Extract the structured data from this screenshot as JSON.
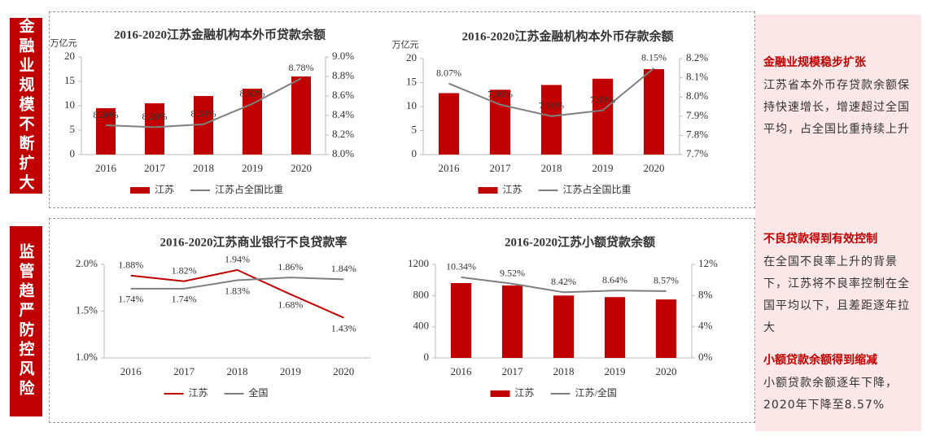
{
  "sidebar": [
    "金融业规模不断扩大",
    "监管趋严防控风险"
  ],
  "notes": [
    {
      "heading": "金融业规模稳步扩张",
      "text": "江苏省本外币存贷款余额保持快速增长，增速超过全国平均，占全国比重持续上升"
    },
    {
      "heading": "不良贷款得到有效控制",
      "text": "在全国不良率上升的背景下，江苏将不良率控制在全国平均以下，且差距逐年拉大"
    },
    {
      "heading": "小额贷款余额得到缩减",
      "text": "小额贷款余额逐年下降，2020年下降至8.57%"
    }
  ],
  "chart_data": [
    {
      "type": "bar",
      "title": "2016-2020江苏金融机构本外币贷款余额",
      "ylabel": "万亿元",
      "categories": [
        "2016",
        "2017",
        "2018",
        "2019",
        "2020"
      ],
      "ylim": [
        0,
        20
      ],
      "yticks": [
        0,
        5,
        10,
        15,
        20
      ],
      "y2lim": [
        8.0,
        9.0
      ],
      "y2ticks": [
        {
          "value": 8.0,
          "label": "8.0%"
        },
        {
          "value": 8.2,
          "label": "8.2%"
        },
        {
          "value": 8.4,
          "label": "8.4%"
        },
        {
          "value": 8.6,
          "label": "8.6%"
        },
        {
          "value": 8.8,
          "label": "8.8%"
        },
        {
          "value": 9.0,
          "label": "9.0%"
        }
      ],
      "series": [
        {
          "name": "江苏",
          "type": "bar",
          "color": "#c00000",
          "values": [
            9.5,
            10.5,
            12,
            13.5,
            16
          ]
        },
        {
          "name": "江苏占全国比重",
          "type": "line",
          "axis": "y2",
          "color": "#7f7f7f",
          "values": [
            8.3,
            8.28,
            8.31,
            8.52,
            8.78
          ],
          "value_labels": [
            "8.30%",
            "8.28%",
            "8.31%",
            "8.52%",
            "8.78%"
          ]
        }
      ]
    },
    {
      "type": "bar",
      "title": "2016-2020江苏金融机构本外币存款余额",
      "ylabel": "万亿元",
      "categories": [
        "2016",
        "2017",
        "2018",
        "2019",
        "2020"
      ],
      "ylim": [
        0,
        20
      ],
      "yticks": [
        0,
        5,
        10,
        15,
        20
      ],
      "y2lim": [
        7.7,
        8.2
      ],
      "y2ticks": [
        {
          "value": 7.7,
          "label": "7.7%"
        },
        {
          "value": 7.8,
          "label": "7.8%"
        },
        {
          "value": 7.9,
          "label": "7.9%"
        },
        {
          "value": 8.0,
          "label": "8.0%"
        },
        {
          "value": 8.1,
          "label": "8.1%"
        },
        {
          "value": 8.2,
          "label": "8.2%"
        }
      ],
      "series": [
        {
          "name": "江苏",
          "type": "bar",
          "color": "#c00000",
          "values": [
            12.8,
            13.5,
            14.5,
            15.8,
            17.8
          ]
        },
        {
          "name": "江苏占全国比重",
          "type": "line",
          "axis": "y2",
          "color": "#7f7f7f",
          "values": [
            8.07,
            7.96,
            7.9,
            7.93,
            8.15
          ],
          "value_labels": [
            "8.07%",
            "7.96%",
            "7.90%",
            "7.93%",
            "8.15%"
          ]
        }
      ]
    },
    {
      "type": "line",
      "title": "2016-2020江苏商业银行不良贷款率",
      "categories": [
        "2016",
        "2017",
        "2018",
        "2019",
        "2020"
      ],
      "ylim": [
        1.0,
        2.0
      ],
      "yticks": [
        {
          "value": 1.0,
          "label": "1.0%"
        },
        {
          "value": 1.5,
          "label": "1.5%"
        },
        {
          "value": 2.0,
          "label": "2.0%"
        }
      ],
      "series": [
        {
          "name": "江苏",
          "type": "line",
          "color": "#c00000",
          "values": [
            1.88,
            1.82,
            1.94,
            1.68,
            1.43
          ],
          "value_labels": [
            "1.88%",
            "1.82%",
            "1.94%",
            "1.68%",
            "1.43%"
          ]
        },
        {
          "name": "全国",
          "type": "line",
          "color": "#7f7f7f",
          "values": [
            1.74,
            1.74,
            1.83,
            1.86,
            1.84
          ],
          "value_labels": [
            "1.74%",
            "1.74%",
            "1.83%",
            "1.86%",
            "1.84%"
          ]
        }
      ]
    },
    {
      "type": "bar",
      "title": "2016-2020江苏小额贷款余额",
      "categories": [
        "2016",
        "2017",
        "2018",
        "2019",
        "2020"
      ],
      "ylim": [
        0,
        1200
      ],
      "yticks": [
        0,
        400,
        800,
        1200
      ],
      "y2lim": [
        0,
        12
      ],
      "y2ticks": [
        {
          "value": 0,
          "label": "0%"
        },
        {
          "value": 4,
          "label": "4%"
        },
        {
          "value": 8,
          "label": "8%"
        },
        {
          "value": 12,
          "label": "12%"
        }
      ],
      "series": [
        {
          "name": "江苏",
          "type": "bar",
          "color": "#c00000",
          "values": [
            960,
            930,
            800,
            780,
            750
          ]
        },
        {
          "name": "江苏/全国",
          "type": "line",
          "axis": "y2",
          "color": "#7f7f7f",
          "values": [
            10.34,
            9.52,
            8.42,
            8.64,
            8.57
          ],
          "value_labels": [
            "10.34%",
            "9.52%",
            "8.42%",
            "8.64%",
            "8.57%"
          ]
        }
      ]
    }
  ]
}
